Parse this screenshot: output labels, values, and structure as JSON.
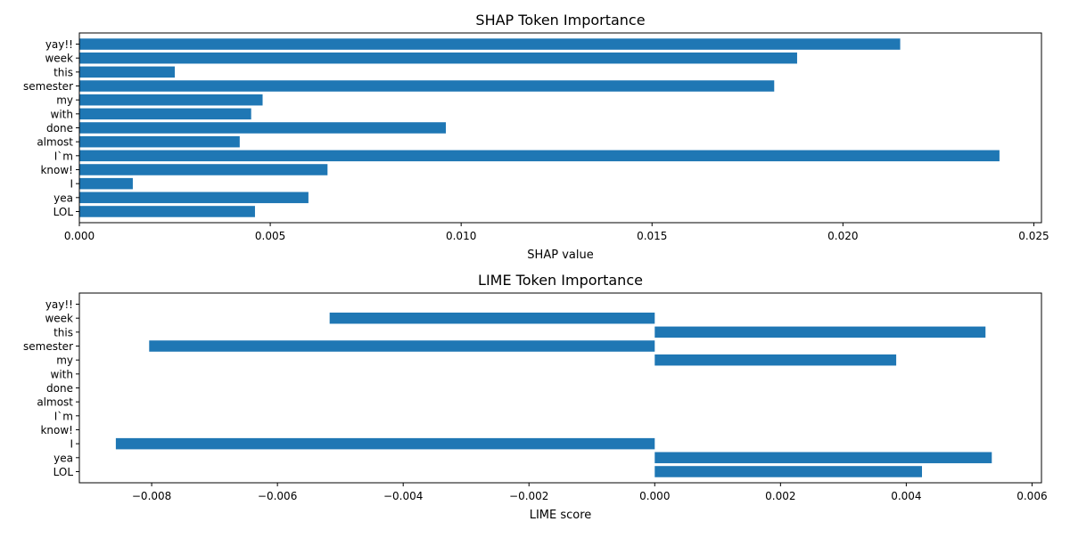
{
  "chart_data": [
    {
      "type": "bar",
      "orientation": "horizontal",
      "title": "SHAP Token Importance",
      "xlabel": "SHAP value",
      "ylabel": "",
      "xlim": [
        0,
        0.0252
      ],
      "xticks": [
        0,
        0.005,
        0.01,
        0.015,
        0.02,
        0.025
      ],
      "xtick_labels": [
        "0.000",
        "0.005",
        "0.010",
        "0.015",
        "0.020",
        "0.025"
      ],
      "categories": [
        "yay!!",
        "week",
        "this",
        "semester",
        "my",
        "with",
        "done",
        "almost",
        "I`m",
        "know!",
        "I",
        "yea",
        "LOL"
      ],
      "values": [
        0.0215,
        0.0188,
        0.0025,
        0.0182,
        0.0048,
        0.0045,
        0.0096,
        0.0042,
        0.0241,
        0.0065,
        0.0014,
        0.006,
        0.0046
      ],
      "color": "#1f77b4",
      "grid": false,
      "legend": "none"
    },
    {
      "type": "bar",
      "orientation": "horizontal",
      "title": "LIME Token Importance",
      "xlabel": "LIME score",
      "ylabel": "",
      "xlim": [
        -0.00915,
        0.00615
      ],
      "xticks": [
        -0.008,
        -0.006,
        -0.004,
        -0.002,
        0,
        0.002,
        0.004,
        0.006
      ],
      "xtick_labels": [
        "−0.008",
        "−0.006",
        "−0.004",
        "−0.002",
        "0.000",
        "0.002",
        "0.004",
        "0.006"
      ],
      "categories": [
        "yay!!",
        "week",
        "this",
        "semester",
        "my",
        "with",
        "done",
        "almost",
        "I`m",
        "know!",
        "I",
        "yea",
        "LOL"
      ],
      "values": [
        0,
        -0.00517,
        0.00526,
        -0.00804,
        0.00384,
        0,
        0,
        0,
        0,
        0,
        -0.00857,
        0.00536,
        0.00425
      ],
      "color": "#1f77b4",
      "grid": false,
      "legend": "none"
    }
  ]
}
